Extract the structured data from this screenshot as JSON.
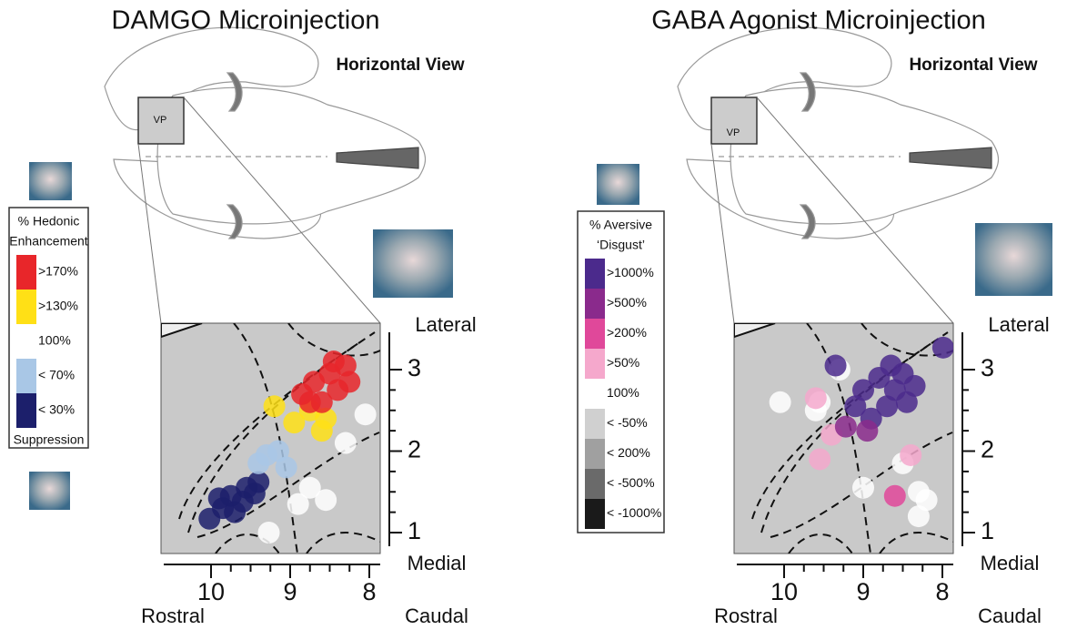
{
  "panels": [
    {
      "title": "DAMGO Microinjection",
      "view_label": "Horizontal View",
      "inset_label": "VP",
      "legend": {
        "title": "% Hedonic",
        "subtitle": "Enhancement",
        "footer": "Suppression",
        "items": [
          {
            "label": ">170%",
            "color": "#e8262a"
          },
          {
            "label": ">130%",
            "color": "#ffe016"
          },
          {
            "label": "100%",
            "color": "#ffffff"
          },
          {
            "label": "< 70%",
            "color": "#a9c7e6"
          },
          {
            "label": "< 30%",
            "color": "#1c1f6b"
          }
        ]
      },
      "axis": {
        "x_ticks": [
          10,
          9,
          8
        ],
        "y_ticks": [
          1,
          2,
          3
        ],
        "top": "Lateral",
        "bottom": "Medial",
        "left": "Rostral",
        "right": "Caudal"
      },
      "dots": [
        {
          "x": 10.02,
          "y": 1.17,
          "level": 4
        },
        {
          "x": 9.85,
          "y": 1.3,
          "level": 4
        },
        {
          "x": 9.75,
          "y": 1.45,
          "level": 4
        },
        {
          "x": 9.6,
          "y": 1.38,
          "level": 4
        },
        {
          "x": 9.55,
          "y": 1.55,
          "level": 4
        },
        {
          "x": 9.45,
          "y": 1.48,
          "level": 4
        },
        {
          "x": 9.4,
          "y": 1.62,
          "level": 4
        },
        {
          "x": 9.7,
          "y": 1.25,
          "level": 4
        },
        {
          "x": 9.9,
          "y": 1.42,
          "level": 4
        },
        {
          "x": 9.4,
          "y": 1.85,
          "level": 3
        },
        {
          "x": 9.3,
          "y": 1.95,
          "level": 3
        },
        {
          "x": 9.15,
          "y": 2.0,
          "level": 3
        },
        {
          "x": 9.05,
          "y": 1.8,
          "level": 3
        },
        {
          "x": 9.2,
          "y": 2.55,
          "level": 1
        },
        {
          "x": 8.95,
          "y": 2.35,
          "level": 1
        },
        {
          "x": 8.75,
          "y": 2.5,
          "level": 1
        },
        {
          "x": 8.6,
          "y": 2.25,
          "level": 1
        },
        {
          "x": 8.55,
          "y": 2.4,
          "level": 1
        },
        {
          "x": 8.85,
          "y": 2.7,
          "level": 0
        },
        {
          "x": 8.7,
          "y": 2.85,
          "level": 0
        },
        {
          "x": 8.6,
          "y": 2.6,
          "level": 0
        },
        {
          "x": 8.5,
          "y": 2.95,
          "level": 0
        },
        {
          "x": 8.4,
          "y": 2.75,
          "level": 0
        },
        {
          "x": 8.3,
          "y": 3.05,
          "level": 0
        },
        {
          "x": 8.25,
          "y": 2.85,
          "level": 0
        },
        {
          "x": 8.45,
          "y": 3.1,
          "level": 0
        },
        {
          "x": 8.75,
          "y": 2.6,
          "level": 0
        },
        {
          "x": 8.05,
          "y": 2.45,
          "level": 2
        },
        {
          "x": 8.3,
          "y": 2.1,
          "level": 2
        },
        {
          "x": 8.75,
          "y": 1.55,
          "level": 2
        },
        {
          "x": 8.55,
          "y": 1.4,
          "level": 2
        },
        {
          "x": 8.9,
          "y": 1.35,
          "level": 2
        },
        {
          "x": 9.27,
          "y": 1.0,
          "level": 2
        }
      ]
    },
    {
      "title": "GABA Agonist Microinjection",
      "view_label": "Horizontal View",
      "inset_label": "VP",
      "legend": {
        "title": "% Aversive",
        "subtitle": "‘Disgust’",
        "items": [
          {
            "label": ">1000%",
            "color": "#4b2a8c"
          },
          {
            "label": ">500%",
            "color": "#8a2a8c"
          },
          {
            "label": ">200%",
            "color": "#e0489a"
          },
          {
            "label": ">50%",
            "color": "#f5a8cc"
          },
          {
            "label": "100%",
            "color": "#ffffff"
          },
          {
            "label": "< -50%",
            "color": "#d0d0d0"
          },
          {
            "label": "< 200%",
            "color": "#a0a0a0"
          },
          {
            "label": "< -500%",
            "color": "#6a6a6a"
          },
          {
            "label": "< -1000%",
            "color": "#1a1a1a"
          }
        ]
      },
      "axis": {
        "x_ticks": [
          10,
          9,
          8
        ],
        "y_ticks": [
          1,
          2,
          3
        ],
        "top": "Lateral",
        "bottom": "Medial",
        "left": "Rostral",
        "right": "Caudal"
      },
      "dots": [
        {
          "x": 10.05,
          "y": 2.6,
          "level": 4
        },
        {
          "x": 9.6,
          "y": 2.5,
          "level": 4
        },
        {
          "x": 9.3,
          "y": 3.0,
          "level": 4
        },
        {
          "x": 8.5,
          "y": 1.85,
          "level": 4
        },
        {
          "x": 8.3,
          "y": 1.5,
          "level": 4
        },
        {
          "x": 8.2,
          "y": 1.4,
          "level": 4
        },
        {
          "x": 8.3,
          "y": 1.2,
          "level": 4
        },
        {
          "x": 9.0,
          "y": 1.55,
          "level": 4
        },
        {
          "x": 9.55,
          "y": 2.6,
          "level": 4
        },
        {
          "x": 9.55,
          "y": 1.9,
          "level": 3
        },
        {
          "x": 9.6,
          "y": 2.65,
          "level": 3
        },
        {
          "x": 8.6,
          "y": 1.45,
          "level": 2
        },
        {
          "x": 8.4,
          "y": 1.95,
          "level": 3
        },
        {
          "x": 9.4,
          "y": 2.2,
          "level": 3
        },
        {
          "x": 9.22,
          "y": 2.3,
          "level": 1
        },
        {
          "x": 9.35,
          "y": 3.05,
          "level": 0
        },
        {
          "x": 9.1,
          "y": 2.55,
          "level": 0
        },
        {
          "x": 9.0,
          "y": 2.75,
          "level": 0
        },
        {
          "x": 8.9,
          "y": 2.4,
          "level": 0
        },
        {
          "x": 8.8,
          "y": 2.9,
          "level": 0
        },
        {
          "x": 8.7,
          "y": 2.55,
          "level": 0
        },
        {
          "x": 8.6,
          "y": 2.75,
          "level": 0
        },
        {
          "x": 8.5,
          "y": 2.95,
          "level": 0
        },
        {
          "x": 8.45,
          "y": 2.6,
          "level": 0
        },
        {
          "x": 8.35,
          "y": 2.8,
          "level": 0
        },
        {
          "x": 8.65,
          "y": 3.05,
          "level": 0
        },
        {
          "x": 8.95,
          "y": 2.25,
          "level": 1
        },
        {
          "x": 7.99,
          "y": 3.27,
          "level": 0
        }
      ]
    }
  ]
}
